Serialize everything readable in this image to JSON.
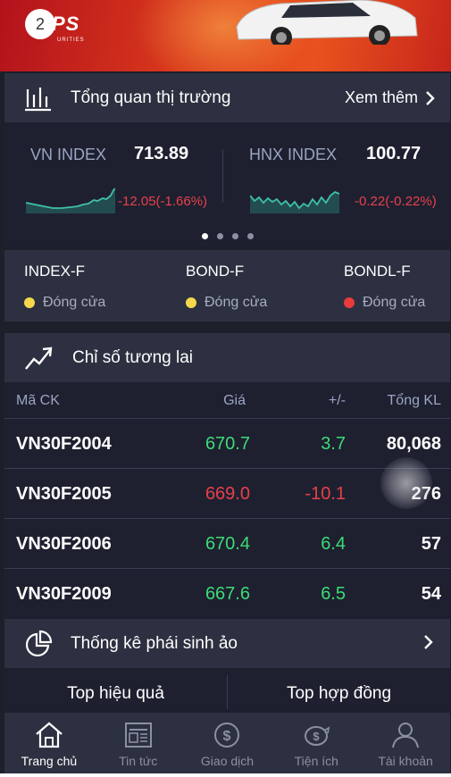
{
  "banner": {
    "badge": "2",
    "brand": "PS",
    "brand_sub": "URITIES"
  },
  "market_overview": {
    "title": "Tổng quan thị trường",
    "more_label": "Xem thêm",
    "indices": [
      {
        "name": "VN INDEX",
        "value": "713.89",
        "change": "-12.05(-1.66%)"
      },
      {
        "name": "HNX INDEX",
        "value": "100.77",
        "change": "-0.22(-0.22%)"
      }
    ],
    "pagination": {
      "count": 4,
      "active": 1
    }
  },
  "products": [
    {
      "name": "INDEX-F",
      "status": "Đóng cửa",
      "dot_color": "#f5d94a"
    },
    {
      "name": "BOND-F",
      "status": "Đóng cửa",
      "dot_color": "#f5d94a"
    },
    {
      "name": "BONDL-F",
      "status": "Đóng cửa",
      "dot_color": "#e83b3b"
    }
  ],
  "futures": {
    "title": "Chỉ số tương lai",
    "columns": {
      "symbol": "Mã CK",
      "price": "Giá",
      "change": "+/-",
      "volume": "Tổng KL"
    },
    "rows": [
      {
        "symbol": "VN30F2004",
        "price": "670.7",
        "change": "3.7",
        "volume": "80,068",
        "direction": "up"
      },
      {
        "symbol": "VN30F2005",
        "price": "669.0",
        "change": "-10.1",
        "volume": "276",
        "direction": "down"
      },
      {
        "symbol": "VN30F2006",
        "price": "670.4",
        "change": "6.4",
        "volume": "57",
        "direction": "up"
      },
      {
        "symbol": "VN30F2009",
        "price": "667.6",
        "change": "6.5",
        "volume": "54",
        "direction": "up"
      }
    ]
  },
  "stats": {
    "title": "Thống kê phái sinh ảo",
    "tabs": [
      "Top hiệu quả",
      "Top hợp đồng"
    ]
  },
  "nav": {
    "items": [
      {
        "label": "Trang chủ",
        "icon": "home-icon",
        "active": true
      },
      {
        "label": "Tin tức",
        "icon": "news-icon",
        "active": false
      },
      {
        "label": "Giao dịch",
        "icon": "dollar-icon",
        "active": false
      },
      {
        "label": "Tiện ích",
        "icon": "piggy-bank-icon",
        "active": false
      },
      {
        "label": "Tài khoản",
        "icon": "user-icon",
        "active": false
      }
    ]
  },
  "colors": {
    "up": "#3ddc74",
    "down": "#e8404a",
    "accent_bg": "#2d3040",
    "panel_bg": "#1e2030"
  }
}
